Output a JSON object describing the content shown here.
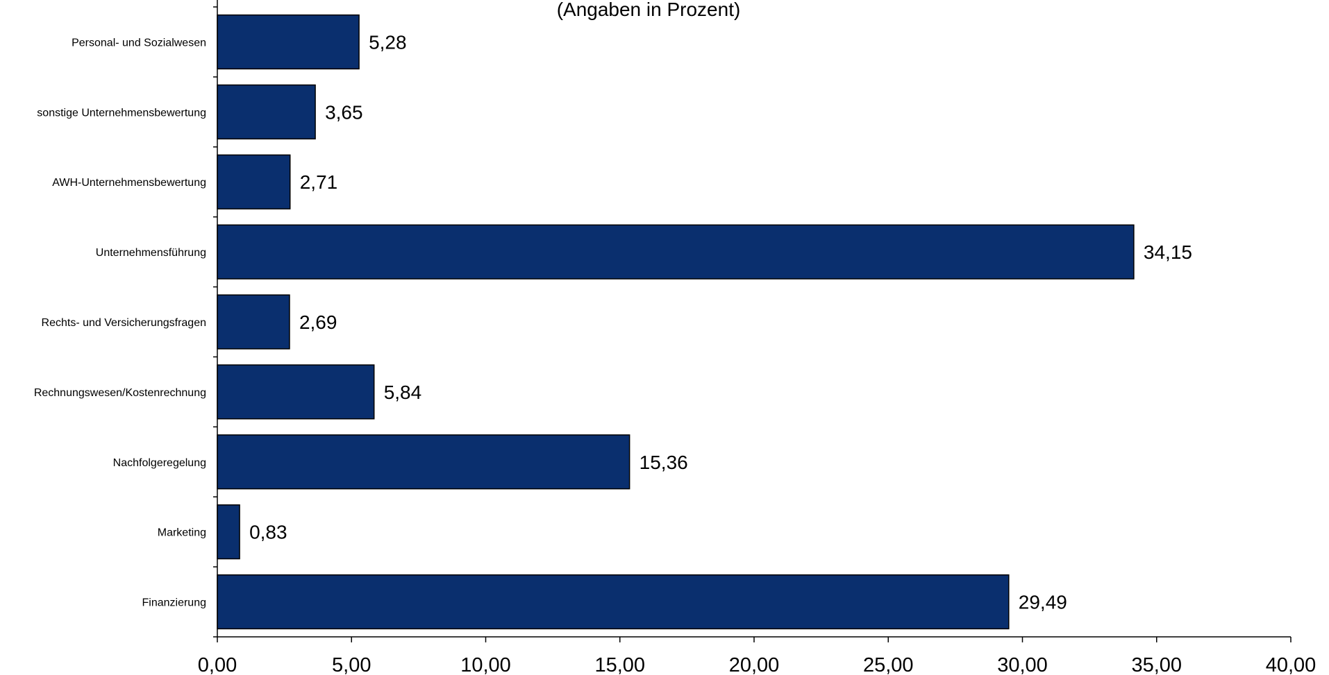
{
  "chart_data": {
    "type": "bar",
    "orientation": "horizontal",
    "subtitle": "(Angaben in Prozent)",
    "categories": [
      "Personal- und Sozialwesen",
      "sonstige Unternehmensbewertung",
      "AWH-Unternehmensbewertung",
      "Unternehmensführung",
      "Rechts- und Versicherungsfragen",
      "Rechnungswesen/Kostenrechnung",
      "Nachfolgeregelung",
      "Marketing",
      "Finanzierung"
    ],
    "values": [
      5.28,
      3.65,
      2.71,
      34.15,
      2.69,
      5.84,
      15.36,
      0.83,
      29.49
    ],
    "value_labels": [
      "5,28",
      "3,65",
      "2,71",
      "34,15",
      "2,69",
      "5,84",
      "15,36",
      "0,83",
      "29,49"
    ],
    "xlim": [
      0,
      40
    ],
    "x_ticks": [
      0,
      5,
      10,
      15,
      20,
      25,
      30,
      35,
      40
    ],
    "x_tick_labels": [
      "0,00",
      "5,00",
      "10,00",
      "15,00",
      "20,00",
      "25,00",
      "30,00",
      "35,00",
      "40,00"
    ],
    "bar_color": "#0a2f6e",
    "grid": false,
    "legend": "none"
  }
}
